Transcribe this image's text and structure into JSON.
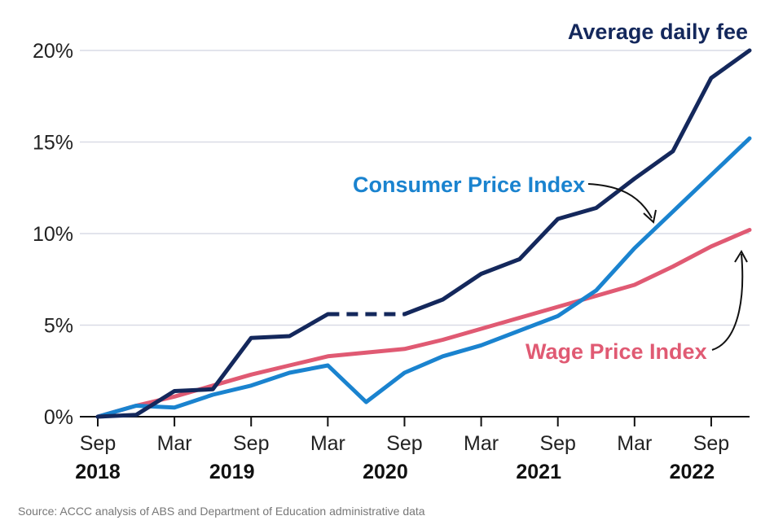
{
  "chart_data": {
    "type": "line",
    "x": [
      "Sep 2018",
      "Dec 2018",
      "Mar 2019",
      "Jun 2019",
      "Sep 2019",
      "Dec 2019",
      "Mar 2020",
      "Jun 2020",
      "Sep 2020",
      "Dec 2020",
      "Mar 2021",
      "Jun 2021",
      "Sep 2021",
      "Dec 2021",
      "Mar 2022",
      "Jun 2022",
      "Sep 2022",
      "Dec 2022"
    ],
    "x_tick_labels": [
      "Sep",
      "Mar",
      "Sep",
      "Mar",
      "Sep",
      "Mar",
      "Sep",
      "Mar",
      "Sep"
    ],
    "x_year_labels": [
      "2018",
      "2019",
      "2020",
      "2021",
      "2022"
    ],
    "y_tick_labels": [
      "0%",
      "5%",
      "10%",
      "15%",
      "20%"
    ],
    "ylim": [
      0,
      20
    ],
    "grid": true,
    "series": [
      {
        "name": "Average daily fee",
        "color": "#14285c",
        "values": [
          0.0,
          0.1,
          1.4,
          1.5,
          4.3,
          4.4,
          5.6,
          5.6,
          5.6,
          6.4,
          7.8,
          8.6,
          10.8,
          11.4,
          13.0,
          14.5,
          18.5,
          20.0
        ],
        "dashed_segment": [
          "Mar 2020",
          "Sep 2020"
        ]
      },
      {
        "name": "Consumer Price Index",
        "color": "#1a83cf",
        "values": [
          0.0,
          0.6,
          0.5,
          1.2,
          1.7,
          2.4,
          2.8,
          0.8,
          2.4,
          3.3,
          3.9,
          4.7,
          5.5,
          6.9,
          9.2,
          11.2,
          13.2,
          15.2
        ]
      },
      {
        "name": "Wage Price Index",
        "color": "#e05a73",
        "values": [
          0.0,
          0.6,
          1.1,
          1.7,
          2.3,
          2.8,
          3.3,
          3.5,
          3.7,
          4.2,
          4.8,
          5.4,
          6.0,
          6.6,
          7.2,
          8.2,
          9.3,
          10.2
        ]
      }
    ]
  },
  "source": "Source: ACCC analysis of ABS and Department of Education administrative data"
}
